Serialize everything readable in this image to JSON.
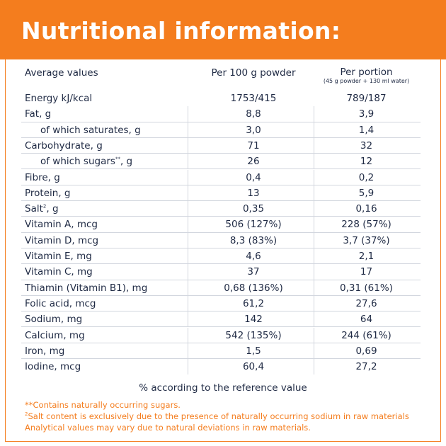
{
  "title": "Nutritional information:",
  "headers": {
    "label": "Average values",
    "per100": "Per 100 g powder",
    "portion": "Per portion",
    "portion_sub": "(45 g powder + 130 ml water)"
  },
  "rows": [
    {
      "label": "Energy kJ/kcal",
      "per100": "1753/415",
      "portion": "789/187"
    },
    {
      "label": "Fat, g",
      "per100": "8,8",
      "portion": "3,9"
    },
    {
      "label": "of which saturates, g",
      "per100": "3,0",
      "portion": "1,4"
    },
    {
      "label": "Carbohydrate, g",
      "per100": "71",
      "portion": "32"
    },
    {
      "label": "of which sugars",
      "sup": "**",
      "suffix": ", g",
      "per100": "26",
      "portion": "12"
    },
    {
      "label": "Fibre, g",
      "per100": "0,4",
      "portion": "0,2"
    },
    {
      "label": "Protein, g",
      "per100": "13",
      "portion": "5,9"
    },
    {
      "label": "Salt",
      "sup": "2",
      "suffix": ", g",
      "per100": "0,35",
      "portion": "0,16"
    },
    {
      "label": "Vitamin A, mcg",
      "per100": "506 (127%)",
      "portion": "228 (57%)"
    },
    {
      "label": "Vitamin D, mcg",
      "per100": "8,3 (83%)",
      "portion": "3,7 (37%)"
    },
    {
      "label": "Vitamin E, mg",
      "per100": "4,6",
      "portion": "2,1"
    },
    {
      "label": "Vitamin C, mg",
      "per100": "37",
      "portion": "17"
    },
    {
      "label": "Thiamin (Vitamin B1), mg",
      "per100": "0,68 (136%)",
      "portion": "0,31 (61%)"
    },
    {
      "label": "Folic acid, mcg",
      "per100": "61,2",
      "portion": "27,6"
    },
    {
      "label": "Sodium, mg",
      "per100": "142",
      "portion": "64"
    },
    {
      "label": "Calcium, mg",
      "per100": "542 (135%)",
      "portion": "244 (61%)"
    },
    {
      "label": "Iron, mg",
      "per100": "1,5",
      "portion": "0,69"
    },
    {
      "label": "Iodine, mcg",
      "per100": "60,4",
      "portion": "27,2"
    }
  ],
  "reference_note": "% according to the reference value",
  "footnotes": {
    "sugars": "**Contains naturally occurring sugars.",
    "salt_mark": "2",
    "salt": "Salt content is exclusively due to the presence of naturally occurring sodium in raw materials",
    "analytical": "Analytical values may vary due to natural deviations in raw materials."
  },
  "colors": {
    "accent": "#f47d1e",
    "text": "#1f2a44",
    "rule": "#d2d6de"
  }
}
